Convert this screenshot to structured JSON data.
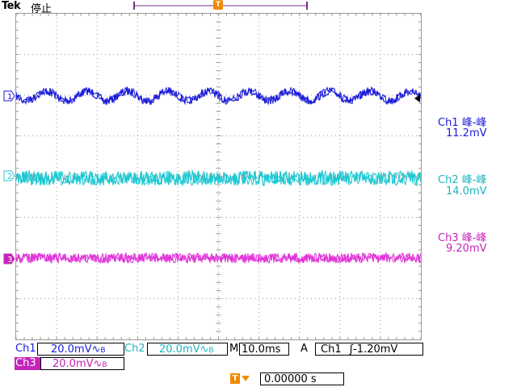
{
  "header": {
    "brand": "Tek",
    "status": "停止"
  },
  "trigger_marker": "T",
  "colors": {
    "ch1": "#1a1ad8",
    "ch2": "#1ec8d2",
    "ch3": "#e033d8",
    "trigger": "#f08a00",
    "grid": "#9a9a9a",
    "record_bar": "#7a2e8a"
  },
  "channels": [
    {
      "marker": "1",
      "measure_title": "Ch1 峰-峰",
      "measure_value": "11.2mV"
    },
    {
      "marker": "2",
      "measure_title": "Ch2 峰-峰",
      "measure_value": "14.0mV"
    },
    {
      "marker": "3",
      "measure_title": "Ch3 峰-峰",
      "measure_value": "9.20mV"
    }
  ],
  "bottom": {
    "ch1_label": "Ch1",
    "ch1_scale": "20.0mV",
    "ch2_label": "Ch2",
    "ch2_scale": "20.0mV",
    "timebase_label": "M",
    "timebase_value": "10.0ms",
    "trigger_mode": "A",
    "trigger_source": "Ch1",
    "trigger_level": "-1.20mV",
    "ch3_label": "Ch3",
    "ch3_scale": "20.0mV",
    "trigger_position": "0.00000 s"
  }
}
